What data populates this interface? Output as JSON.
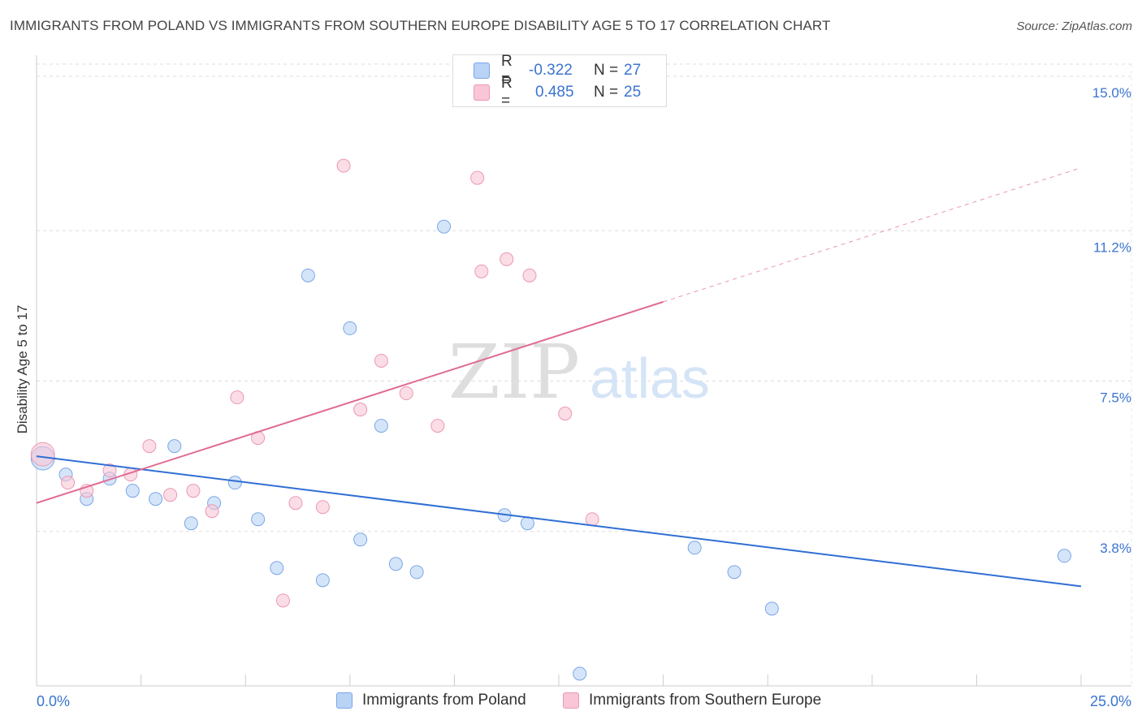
{
  "title": "IMMIGRANTS FROM POLAND VS IMMIGRANTS FROM SOUTHERN EUROPE DISABILITY AGE 5 TO 17 CORRELATION CHART",
  "source": "Source: ZipAtlas.com",
  "watermark": {
    "zip": "ZIP",
    "atlas": "atlas"
  },
  "legend": {
    "poland": {
      "r_label": "R =",
      "r_value": "-0.322",
      "n_label": "N =",
      "n_value": "27"
    },
    "southern": {
      "r_label": "R =",
      "r_value": "0.485",
      "n_label": "N =",
      "n_value": "25"
    }
  },
  "colors": {
    "poland_fill": "#b9d3f5",
    "poland_stroke": "#7aa6e6",
    "poland_line": "#2f6fd4",
    "southern_fill": "#f8c6d6",
    "southern_stroke": "#ec98b4",
    "southern_line": "#e06a93",
    "tick_label": "#3a74d0",
    "grid": "#dddddd"
  },
  "chart_data": {
    "type": "scatter",
    "xlabel": "",
    "ylabel": "Disability Age 5 to 17",
    "xlim": [
      0,
      25
    ],
    "ylim": [
      0,
      15.3
    ],
    "x_tick_labels": [
      {
        "value": 0,
        "label": "0.0%"
      },
      {
        "value": 25,
        "label": "25.0%"
      }
    ],
    "y_ticks": [
      {
        "value": 3.8,
        "label": "3.8%"
      },
      {
        "value": 7.5,
        "label": "7.5%"
      },
      {
        "value": 11.2,
        "label": "11.2%"
      },
      {
        "value": 15.0,
        "label": "15.0%"
      }
    ],
    "grid": true,
    "legend_position": "top-center",
    "series": [
      {
        "name": "Immigrants from Poland",
        "color": "#7aa6e6",
        "points": [
          [
            0.15,
            5.6,
            1.8
          ],
          [
            0.7,
            5.2,
            1
          ],
          [
            1.2,
            4.6,
            1
          ],
          [
            1.75,
            5.1,
            1
          ],
          [
            2.3,
            4.8,
            1
          ],
          [
            2.85,
            4.6,
            1
          ],
          [
            3.3,
            5.9,
            1
          ],
          [
            3.7,
            4.0,
            1
          ],
          [
            4.25,
            4.5,
            1
          ],
          [
            4.75,
            5.0,
            1
          ],
          [
            5.3,
            4.1,
            1
          ],
          [
            5.75,
            2.9,
            1
          ],
          [
            6.5,
            10.1,
            1
          ],
          [
            6.85,
            2.6,
            1
          ],
          [
            7.5,
            8.8,
            1
          ],
          [
            7.75,
            3.6,
            1
          ],
          [
            8.25,
            6.4,
            1
          ],
          [
            8.6,
            3.0,
            1
          ],
          [
            9.1,
            2.8,
            1
          ],
          [
            9.75,
            11.3,
            1
          ],
          [
            11.2,
            4.2,
            1
          ],
          [
            11.75,
            4.0,
            1
          ],
          [
            13.0,
            0.3,
            1
          ],
          [
            15.75,
            3.4,
            1
          ],
          [
            16.7,
            2.8,
            1
          ],
          [
            17.6,
            1.9,
            1
          ],
          [
            24.6,
            3.2,
            1
          ]
        ]
      },
      {
        "name": "Immigrants from Southern Europe",
        "color": "#ec98b4",
        "points": [
          [
            0.15,
            5.7,
            1.8
          ],
          [
            0.75,
            5.0,
            1
          ],
          [
            1.2,
            4.8,
            1
          ],
          [
            1.75,
            5.3,
            1
          ],
          [
            2.25,
            5.2,
            1
          ],
          [
            2.7,
            5.9,
            1
          ],
          [
            3.2,
            4.7,
            1
          ],
          [
            3.75,
            4.8,
            1
          ],
          [
            4.2,
            4.3,
            1
          ],
          [
            4.8,
            7.1,
            1
          ],
          [
            5.3,
            6.1,
            1
          ],
          [
            5.9,
            2.1,
            1
          ],
          [
            6.2,
            4.5,
            1
          ],
          [
            6.85,
            4.4,
            1
          ],
          [
            7.35,
            12.8,
            1
          ],
          [
            7.75,
            6.8,
            1
          ],
          [
            8.25,
            8.0,
            1
          ],
          [
            8.85,
            7.2,
            1
          ],
          [
            9.6,
            6.4,
            1
          ],
          [
            10.55,
            12.5,
            1
          ],
          [
            10.65,
            10.2,
            1
          ],
          [
            11.25,
            10.5,
            1
          ],
          [
            11.8,
            10.1,
            1
          ],
          [
            12.65,
            6.7,
            1
          ],
          [
            13.3,
            4.1,
            1
          ]
        ]
      }
    ],
    "trend_lines": [
      {
        "series": "Immigrants from Poland",
        "x": [
          0,
          25
        ],
        "y": [
          5.65,
          2.45
        ],
        "dashed_extension": null
      },
      {
        "series": "Immigrants from Southern Europe",
        "x": [
          0,
          15.0
        ],
        "y": [
          4.5,
          9.45
        ],
        "dashed_extension": {
          "x": [
            15.0,
            25.0
          ],
          "y": [
            9.45,
            12.75
          ]
        }
      }
    ]
  },
  "bottom_legend": {
    "poland": "Immigrants from Poland",
    "southern": "Immigrants from Southern Europe"
  }
}
